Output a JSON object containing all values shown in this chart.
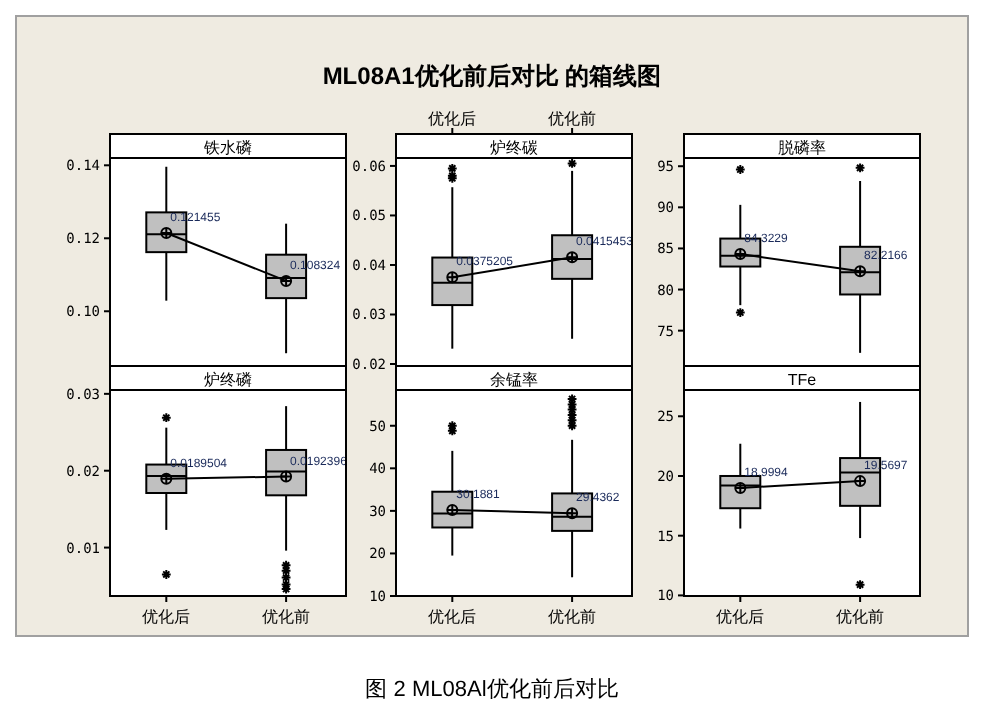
{
  "chart_data": [
    {
      "type": "other",
      "title": "ML08A1优化前后对比 的箱线图",
      "annotations": [
        "图 2 ML08Al优化前后对比"
      ]
    },
    {
      "type": "box",
      "title": "铁水磷",
      "categories": [
        "优化后",
        "优化前"
      ],
      "ylim": [
        0.085,
        0.142
      ],
      "yticks": [
        {
          "value": 0.1,
          "label": "0.10"
        },
        0.12,
        0.14
      ],
      "tick_labels": "y",
      "series": [
        {
          "type": "box",
          "color": "#c0c0c0",
          "boxes": [
            {
              "low": 0.1029,
              "q1": 0.1162,
              "median": 0.1211,
              "q3": 0.1271,
              "high": 0.1396,
              "mean": 0.121455
            },
            {
              "low": 0.0885,
              "q1": 0.1036,
              "median": 0.1091,
              "q3": 0.1155,
              "high": 0.124,
              "mean": 0.108324
            }
          ]
        },
        {
          "type": "line",
          "color": "#000000",
          "x": [
            "优化后",
            "优化前"
          ],
          "values": [
            0.121455,
            0.108324
          ]
        }
      ],
      "annotations": [
        {
          "text": "0.121455",
          "x": "优化后",
          "y": 0.121455
        },
        {
          "text": "0.108324",
          "x": "优化前",
          "y": 0.108324
        }
      ]
    },
    {
      "type": "box",
      "title": "炉终碳",
      "categories": [
        "优化后",
        "优化前"
      ],
      "ylim": [
        0.0196,
        0.0616
      ],
      "yticks": [
        0.02,
        0.03,
        0.04,
        0.05,
        0.06
      ],
      "series": [
        {
          "type": "box",
          "color": "#c0c0c0",
          "boxes": [
            {
              "low": 0.0231,
              "q1": 0.0319,
              "median": 0.0364,
              "q3": 0.0415,
              "high": 0.0557,
              "mean": 0.0375205,
              "outliers": [
                0.0595,
                0.058,
                0.0575
              ]
            },
            {
              "low": 0.0251,
              "q1": 0.0372,
              "median": 0.0412,
              "q3": 0.046,
              "high": 0.059,
              "mean": 0.0415453,
              "outliers": [
                0.0605
              ]
            }
          ]
        },
        {
          "type": "line",
          "color": "#000000",
          "x": [
            "优化后",
            "优化前"
          ],
          "values": [
            0.0375205,
            0.0415453
          ]
        }
      ],
      "annotations": [
        {
          "text": "0.0375205",
          "x": "优化后",
          "y": 0.0375205
        },
        {
          "text": "0.0415453",
          "x": "优化前",
          "y": 0.0415453
        }
      ]
    },
    {
      "type": "box",
      "title": "脱磷率",
      "categories": [
        "优化后",
        "优化前"
      ],
      "ylim": [
        70.7,
        96
      ],
      "yticks": [
        75,
        80,
        85,
        90,
        95
      ],
      "tick_labels": "y",
      "series": [
        {
          "type": "box",
          "color": "#c0c0c0",
          "boxes": [
            {
              "low": 78.1,
              "q1": 82.8,
              "median": 84.1,
              "q3": 86.2,
              "high": 90.3,
              "mean": 84.3229,
              "outliers": [
                94.6,
                77.2
              ]
            },
            {
              "low": 72.3,
              "q1": 79.4,
              "median": 82.1,
              "q3": 85.2,
              "high": 93.2,
              "mean": 82.2166,
              "outliers": [
                94.8
              ]
            }
          ]
        },
        {
          "type": "line",
          "color": "#000000",
          "x": [
            "优化后",
            "优化前"
          ],
          "values": [
            84.3229,
            82.2166
          ]
        }
      ],
      "annotations": [
        {
          "text": "84.3229",
          "x": "优化后",
          "y": 84.3229
        },
        {
          "text": "82.2166",
          "x": "优化前",
          "y": 82.2166
        }
      ]
    },
    {
      "type": "box",
      "title": "炉终磷",
      "categories": [
        "优化后",
        "优化前"
      ],
      "ylim": [
        0.0037,
        0.0305
      ],
      "yticks": [
        0.01,
        0.02,
        0.03
      ],
      "series": [
        {
          "type": "box",
          "color": "#c0c0c0",
          "boxes": [
            {
              "low": 0.0123,
              "q1": 0.0171,
              "median": 0.0193,
              "q3": 0.0208,
              "high": 0.0256,
              "mean": 0.0189504,
              "outliers": [
                0.0269,
                0.0065
              ]
            },
            {
              "low": 0.0096,
              "q1": 0.0168,
              "median": 0.0199,
              "q3": 0.0227,
              "high": 0.0284,
              "mean": 0.0192396,
              "outliers": [
                0.0077,
                0.007,
                0.0061,
                0.0052,
                0.0046
              ]
            }
          ]
        },
        {
          "type": "line",
          "color": "#000000",
          "x": [
            "优化后",
            "优化前"
          ],
          "values": [
            0.0189504,
            0.0192396
          ]
        }
      ],
      "annotations": [
        {
          "text": "0.0189504",
          "x": "优化后",
          "y": 0.0189504
        },
        {
          "text": "0.0192396",
          "x": "优化前",
          "y": 0.0192396
        }
      ]
    },
    {
      "type": "box",
      "title": "余锰率",
      "categories": [
        "优化后",
        "优化前"
      ],
      "ylim": [
        10,
        58.4
      ],
      "yticks": [
        10,
        20,
        30,
        40,
        50
      ],
      "series": [
        {
          "type": "box",
          "color": "#c0c0c0",
          "boxes": [
            {
              "low": 19.5,
              "q1": 26.1,
              "median": 29.4,
              "q3": 34.5,
              "high": 44.1,
              "mean": 30.1881,
              "outliers": [
                50,
                48.8
              ]
            },
            {
              "low": 14.4,
              "q1": 25.3,
              "median": 28.6,
              "q3": 34.1,
              "high": 46.7,
              "mean": 29.4362,
              "outliers": [
                56.3,
                55,
                53.8,
                52.5,
                51.3,
                50
              ]
            }
          ]
        },
        {
          "type": "line",
          "color": "#000000",
          "x": [
            "优化后",
            "优化前"
          ],
          "values": [
            30.1881,
            29.4362
          ]
        }
      ],
      "annotations": [
        {
          "text": "30.1881",
          "x": "优化后",
          "y": 30.1881
        },
        {
          "text": "29.4362",
          "x": "优化前",
          "y": 29.4362
        }
      ]
    },
    {
      "type": "box",
      "title": "TFe",
      "categories": [
        "优化后",
        "优化前"
      ],
      "ylim": [
        9.95,
        27.2
      ],
      "yticks": [
        10,
        15,
        20,
        25
      ],
      "series": [
        {
          "type": "box",
          "color": "#c0c0c0",
          "boxes": [
            {
              "low": 15.6,
              "q1": 17.3,
              "median": 19.2,
              "q3": 20.0,
              "high": 22.7,
              "mean": 18.9994
            },
            {
              "low": 14.8,
              "q1": 17.5,
              "median": 20.3,
              "q3": 21.5,
              "high": 26.2,
              "mean": 19.5697,
              "outliers": [
                10.9
              ]
            }
          ]
        },
        {
          "type": "line",
          "color": "#000000",
          "x": [
            "优化后",
            "优化前"
          ],
          "values": [
            18.9994,
            19.5697
          ]
        }
      ],
      "annotations": [
        {
          "text": "18.9994",
          "x": "优化后",
          "y": 18.9994
        },
        {
          "text": "19.5697",
          "x": "优化前",
          "y": 19.5697
        }
      ]
    }
  ]
}
